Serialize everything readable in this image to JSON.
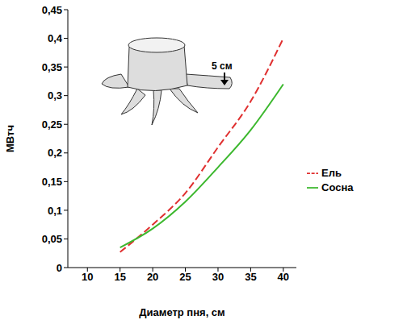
{
  "chart_data": {
    "type": "line",
    "x_label": "Диаметр пня, см",
    "y_label": "МВтч",
    "annotation": "5 см",
    "x": [
      15,
      20,
      25,
      30,
      35,
      40
    ],
    "series": [
      {
        "name": "Ель",
        "color": "#e03030",
        "line_style": "dashed",
        "values": [
          0.027,
          0.075,
          0.13,
          0.21,
          0.29,
          0.4
        ]
      },
      {
        "name": "Сосна",
        "color": "#3cb82e",
        "line_style": "solid",
        "values": [
          0.035,
          0.068,
          0.115,
          0.175,
          0.24,
          0.32
        ]
      }
    ],
    "xlim": [
      7,
      42
    ],
    "xticks": [
      10,
      15,
      20,
      25,
      30,
      35,
      40
    ],
    "ylim": [
      0,
      0.45
    ],
    "yticks": [
      {
        "value": 0,
        "label": "0"
      },
      {
        "value": 0.05,
        "label": "0,05"
      },
      {
        "value": 0.1,
        "label": "0,1"
      },
      {
        "value": 0.15,
        "label": "0,15"
      },
      {
        "value": 0.2,
        "label": "0,2"
      },
      {
        "value": 0.25,
        "label": "0,25"
      },
      {
        "value": 0.3,
        "label": "0,3"
      },
      {
        "value": 0.35,
        "label": "0,35"
      },
      {
        "value": 0.4,
        "label": "0,4"
      },
      {
        "value": 0.45,
        "label": "0,45"
      }
    ],
    "grid": false,
    "legend": "right"
  }
}
